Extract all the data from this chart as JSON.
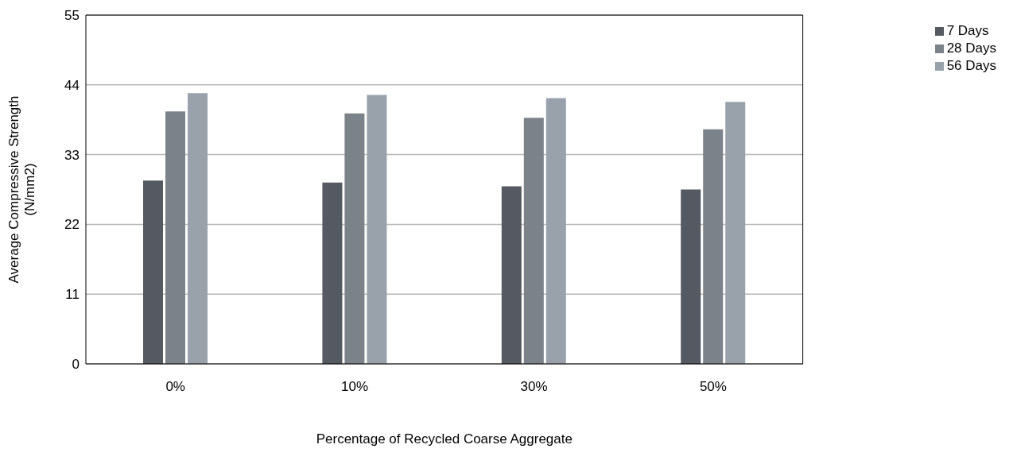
{
  "chart_data": {
    "type": "bar",
    "xlabel": "Percentage of Recycled Coarse Aggregate",
    "ylabel": "Average Compressive Strength (N/mm2)",
    "categories": [
      "0%",
      "10%",
      "30%",
      "50%"
    ],
    "series": [
      {
        "name": "7 Days",
        "color": "#555a62",
        "values": [
          28.9,
          28.6,
          28.0,
          27.5
        ]
      },
      {
        "name": "28 Days",
        "color": "#7c8289",
        "values": [
          39.8,
          39.5,
          38.8,
          37.0
        ]
      },
      {
        "name": "56 Days",
        "color": "#99a2ab",
        "values": [
          42.7,
          42.4,
          41.9,
          41.3
        ]
      }
    ],
    "ylim": [
      0,
      55
    ],
    "yticks": [
      0,
      11,
      22,
      33,
      44,
      55
    ],
    "grid": "y",
    "legend": "top right"
  }
}
